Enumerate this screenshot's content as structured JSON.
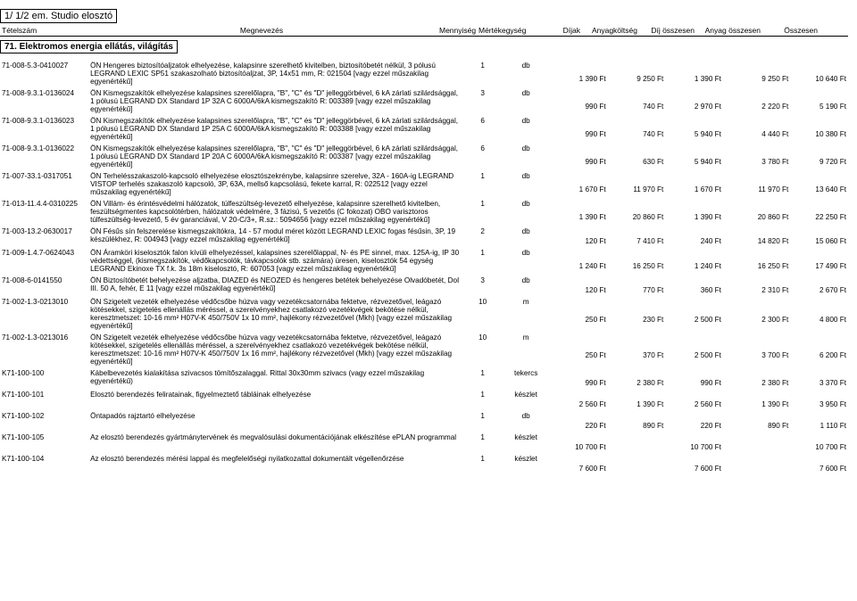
{
  "title": "1/ 1/2 em. Studio elosztó",
  "columns": {
    "id": "Tételszám",
    "desc": "Megnevezés",
    "qty": "Mennyiség",
    "unit": "Mértékegység",
    "dij": "Díjak",
    "anyag": "Anyagköltség",
    "dijo": "Díj összesen",
    "anyago": "Anyag összesen",
    "ossz": "Összesen"
  },
  "section": "71. Elektromos energia ellátás, világítás",
  "rows": [
    {
      "id": "71-008-5.3-0410027",
      "pre": "ÖN",
      "desc": "Hengeres biztosítóaljzatok elhelyezése, kalapsinre szerelhető kivitelben, biztosítóbetét nélkül, 3 pólusú LEGRAND LEXIC SP51 szakaszolható biztosítóaljzat, 3P, 14x51 mm, R: 021504 [vagy ezzel műszakilag egyenértékű]",
      "qty": "1",
      "unit": "db",
      "dij": "1 390 Ft",
      "anyag": "9 250 Ft",
      "dijo": "1 390 Ft",
      "anyago": "9 250 Ft",
      "ossz": "10 640 Ft"
    },
    {
      "id": "71-008-9.3.1-0136024",
      "pre": "ÖN",
      "desc": "Kismegszakítók elhelyezése kalapsines szerelőlapra, \"B\", \"C\" és \"D\" jelleggörbével, 6 kA zárlati szilárdsággal, 1 pólusú LEGRAND DX Standard 1P 32A C 6000A/6kA kismegszakító R: 003389 [vagy ezzel műszakilag egyenértékű]",
      "qty": "3",
      "unit": "db",
      "dij": "990 Ft",
      "anyag": "740 Ft",
      "dijo": "2 970 Ft",
      "anyago": "2 220 Ft",
      "ossz": "5 190 Ft"
    },
    {
      "id": "71-008-9.3.1-0136023",
      "pre": "ÖN",
      "desc": "Kismegszakítók elhelyezése kalapsines szerelőlapra, \"B\", \"C\" és \"D\" jelleggörbével, 6 kA zárlati szilárdsággal, 1 pólusú LEGRAND DX Standard 1P 25A C 6000A/6kA kismegszakító R: 003388 [vagy ezzel műszakilag egyenértékű]",
      "qty": "6",
      "unit": "db",
      "dij": "990 Ft",
      "anyag": "740 Ft",
      "dijo": "5 940 Ft",
      "anyago": "4 440 Ft",
      "ossz": "10 380 Ft"
    },
    {
      "id": "71-008-9.3.1-0136022",
      "pre": "ÖN",
      "desc": "Kismegszakítók elhelyezése kalapsines szerelőlapra, \"B\", \"C\" és \"D\" jelleggörbével, 6 kA zárlati szilárdsággal, 1 pólusú LEGRAND DX Standard 1P 20A C 6000A/6kA kismegszakító R: 003387 [vagy ezzel műszakilag egyenértékű]",
      "qty": "6",
      "unit": "db",
      "dij": "990 Ft",
      "anyag": "630 Ft",
      "dijo": "5 940 Ft",
      "anyago": "3 780 Ft",
      "ossz": "9 720 Ft"
    },
    {
      "id": "71-007-33.1-0317051",
      "pre": "ÖN",
      "desc": "Terhelésszakaszoló-kapcsoló elhelyezése elosztószekrénybe, kalapsinre szerelve, 32A - 160A-ig LEGRAND VISTOP terhelés szakaszoló kapcsoló, 3P, 63A, mellső kapcsolású, fekete karral, R: 022512 [vagy ezzel műszakilag egyenértékű]",
      "qty": "1",
      "unit": "db",
      "dij": "1 670 Ft",
      "anyag": "11 970 Ft",
      "dijo": "1 670 Ft",
      "anyago": "11 970 Ft",
      "ossz": "13 640 Ft"
    },
    {
      "id": "71-013-11.4.4-0310225",
      "pre": "ÖN",
      "desc": "Villám- és érintésvédelmi hálózatok, túlfeszültség-levezető elhelyezése, kalapsinre szerelhető kivitelben, feszültségmentes kapcsolótérben, hálózatok védelmére, 3 fázisú, 5 vezetős (C fokozat) OBO varisztoros túlfeszültség-levezető, 5 év garanciával, V 20-C/3+, R.sz.: 5094656 [vagy ezzel műszakilag egyenértékű]",
      "qty": "1",
      "unit": "db",
      "dij": "1 390 Ft",
      "anyag": "20 860 Ft",
      "dijo": "1 390 Ft",
      "anyago": "20 860 Ft",
      "ossz": "22 250 Ft"
    },
    {
      "id": "71-003-13.2-0630017",
      "pre": "ÖN",
      "desc": "Fésűs sín felszerelése kismegszakítókra, 14 - 57 modul méret között LEGRAND LEXIC fogas fésűsin, 3P, 19 készülékhez, R: 004943 [vagy ezzel műszakilag egyenértékű]",
      "qty": "2",
      "unit": "db",
      "dij": "120 Ft",
      "anyag": "7 410 Ft",
      "dijo": "240 Ft",
      "anyago": "14 820 Ft",
      "ossz": "15 060 Ft"
    },
    {
      "id": "71-009-1.4.7-0624043",
      "pre": "ÖN",
      "desc": "Áramköri kiselosztók falon kívüli elhelyezéssel, kalapsines szerelőlappal, N- és PE sinnel, max. 125A-ig, IP 30 védettséggel, (kismegszakítók, védőkapcsolók, távkapcsolók stb. számára) üresen, kiselosztók 54 egység LEGRAND Ekinoxe TX f.k. 3s 18m kiselosztó, R: 607053 [vagy ezzel műszakilag egyenértékű]",
      "qty": "1",
      "unit": "db",
      "dij": "1 240 Ft",
      "anyag": "16 250 Ft",
      "dijo": "1 240 Ft",
      "anyago": "16 250 Ft",
      "ossz": "17 490 Ft"
    },
    {
      "id": "71-008-6-0141550",
      "pre": "ÖN",
      "desc": "Biztosítóbetét behelyezése aljzatba, DIAZED és NEOZED és hengeres betétek behelyezése Olvadóbetét, DoI III. 50 A, fehér, E 11 [vagy ezzel műszakilag egyenértékű]",
      "qty": "3",
      "unit": "db",
      "dij": "120 Ft",
      "anyag": "770 Ft",
      "dijo": "360 Ft",
      "anyago": "2 310 Ft",
      "ossz": "2 670 Ft"
    },
    {
      "id": "71-002-1.3-0213010",
      "pre": "ÖN",
      "desc": "Szigetelt vezeték elhelyezése védőcsőbe húzva vagy vezetékcsatornába fektetve, rézvezetővel, leágazó kötésekkel, szigetelés ellenállás méréssel, a szerelvényekhez csatlakozó vezetékvégek bekötése nélkül, keresztmetszet: 10-16 mm² H07V-K 450/750V 1x 10 mm², hajlékony rézvezetővel (Mkh) [vagy ezzel műszakilag egyenértékű]",
      "qty": "10",
      "unit": "m",
      "dij": "250 Ft",
      "anyag": "230 Ft",
      "dijo": "2 500 Ft",
      "anyago": "2 300 Ft",
      "ossz": "4 800 Ft"
    },
    {
      "id": "71-002-1.3-0213016",
      "pre": "ÖN",
      "desc": "Szigetelt vezeték elhelyezése védőcsőbe húzva vagy vezetékcsatornába fektetve, rézvezetővel, leágazó kötésekkel, szigetelés ellenállás méréssel, a szerelvényekhez csatlakozó vezetékvégek bekötése nélkül, keresztmetszet: 10-16 mm² H07V-K 450/750V 1x 16 mm², hajlékony rézvezetővel (Mkh) [vagy ezzel műszakilag egyenértékű]",
      "qty": "10",
      "unit": "m",
      "dij": "250 Ft",
      "anyag": "370 Ft",
      "dijo": "2 500 Ft",
      "anyago": "3 700 Ft",
      "ossz": "6 200 Ft"
    },
    {
      "id": "K71-100-100",
      "pre": "",
      "desc": "Kábelbevezetés kialakítása szivacsos tömítőszalaggal. Rittal 30x30mm szivacs (vagy ezzel műszakilag egyenértékű)",
      "qty": "1",
      "unit": "tekercs",
      "dij": "990 Ft",
      "anyag": "2 380 Ft",
      "dijo": "990 Ft",
      "anyago": "2 380 Ft",
      "ossz": "3 370 Ft"
    },
    {
      "id": "K71-100-101",
      "pre": "",
      "desc": "Elosztó berendezés feliratainak, figyelmeztető tábláinak elhelyezése",
      "qty": "1",
      "unit": "készlet",
      "dij": "2 560 Ft",
      "anyag": "1 390 Ft",
      "dijo": "2 560 Ft",
      "anyago": "1 390 Ft",
      "ossz": "3 950 Ft"
    },
    {
      "id": "K71-100-102",
      "pre": "",
      "desc": "Öntapadós rajztartó elhelyezése",
      "qty": "1",
      "unit": "db",
      "dij": "220 Ft",
      "anyag": "890 Ft",
      "dijo": "220 Ft",
      "anyago": "890 Ft",
      "ossz": "1 110 Ft"
    },
    {
      "id": "K71-100-105",
      "pre": "",
      "desc": "Az elosztó berendezés gyártmánytervének és megvalósulási dokumentációjának elkészítése ePLAN programmal",
      "qty": "1",
      "unit": "készlet",
      "dij": "10 700 Ft",
      "anyag": "",
      "dijo": "10 700 Ft",
      "anyago": "",
      "ossz": "10 700 Ft"
    },
    {
      "id": "K71-100-104",
      "pre": "",
      "desc": "Az elosztó berendezés mérési lappal és megfelelőségi nyilatkozattal dokumentált végellenőrzése",
      "qty": "1",
      "unit": "készlet",
      "dij": "7 600 Ft",
      "anyag": "",
      "dijo": "7 600 Ft",
      "anyago": "",
      "ossz": "7 600 Ft"
    }
  ]
}
